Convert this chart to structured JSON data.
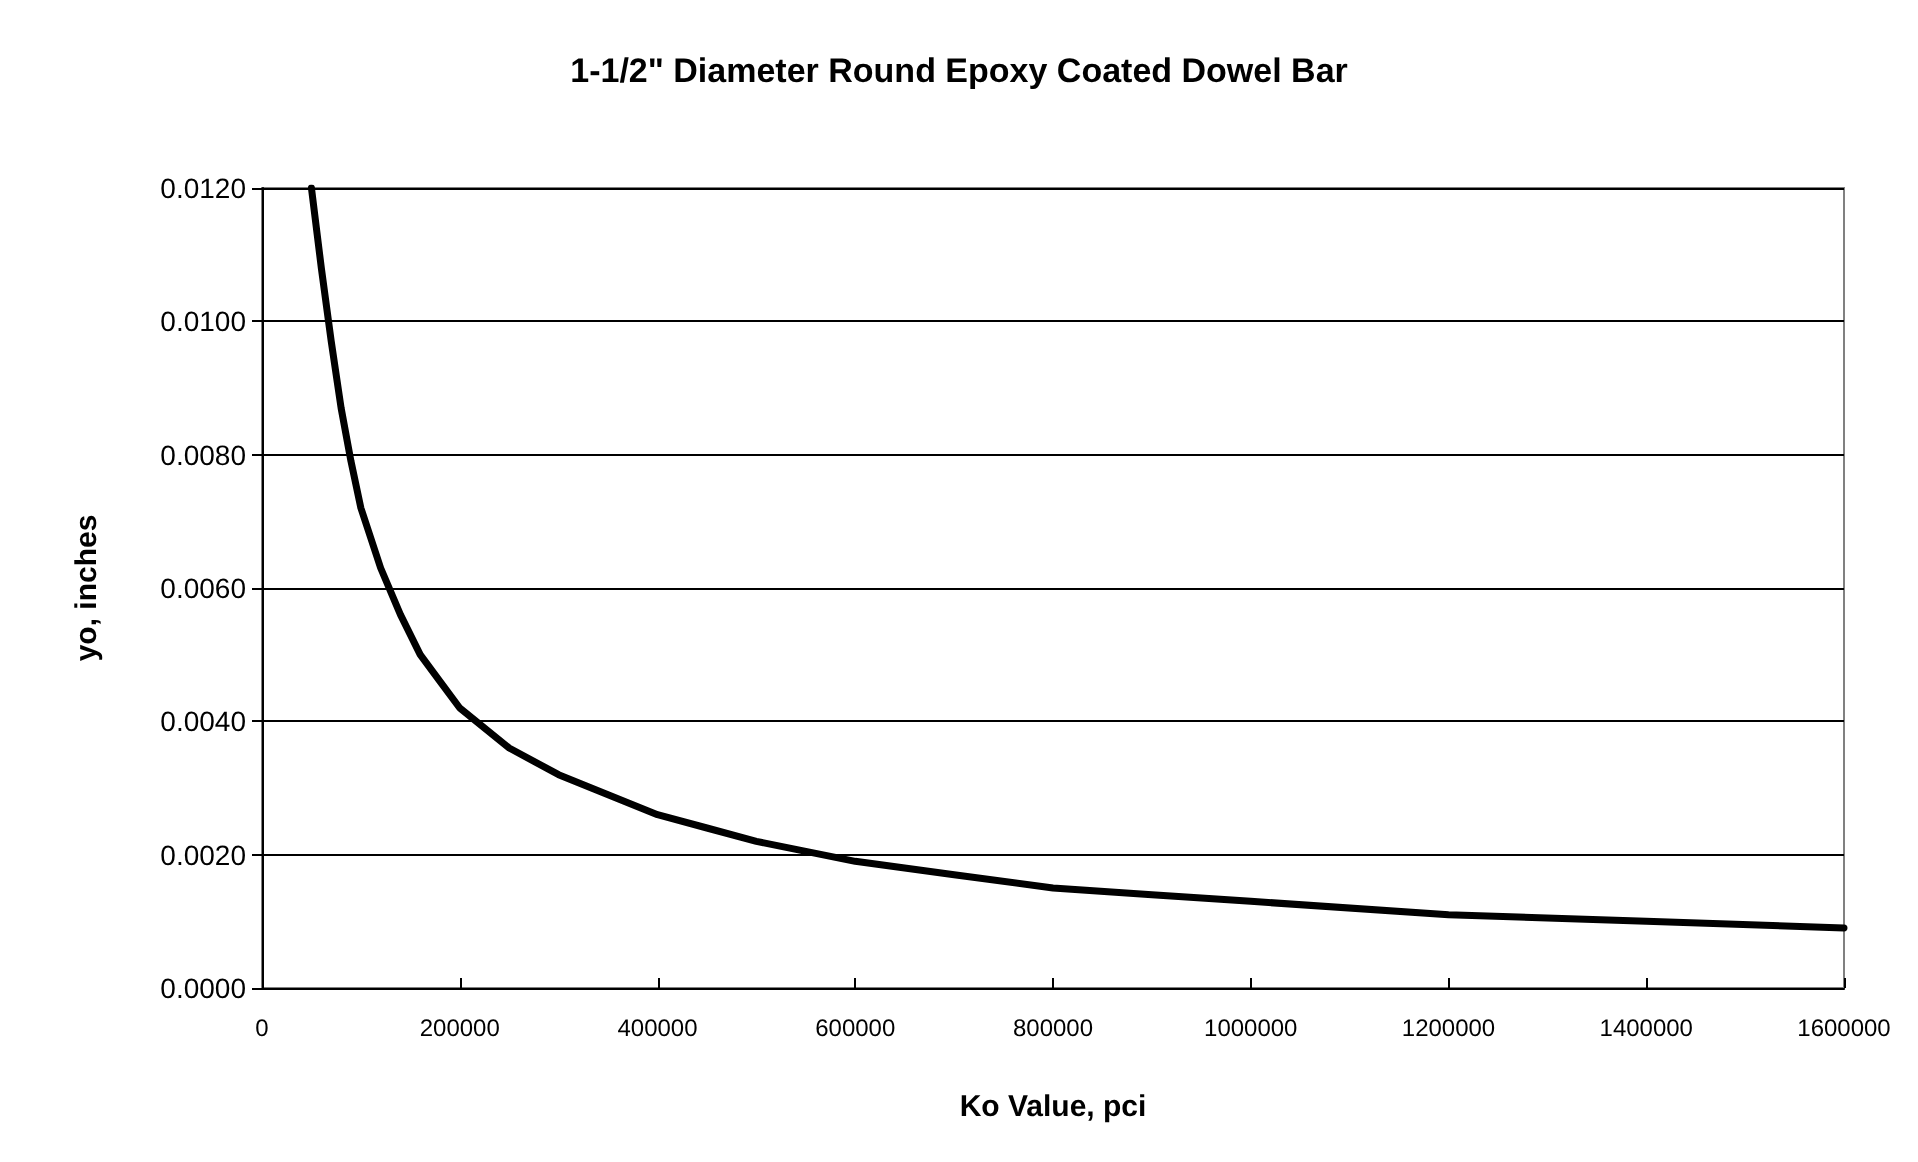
{
  "chart_data": {
    "type": "line",
    "title": "1-1/2\" Diameter Round Epoxy Coated Dowel Bar",
    "xlabel": "Ko Value, pci",
    "ylabel": "yo, inches",
    "x": [
      50000,
      60000,
      70000,
      80000,
      90000,
      100000,
      120000,
      140000,
      160000,
      180000,
      200000,
      250000,
      300000,
      350000,
      400000,
      450000,
      500000,
      600000,
      700000,
      800000,
      900000,
      1000000,
      1200000,
      1400000,
      1600000
    ],
    "series": [
      {
        "color": "#000000",
        "values": [
          0.012,
          0.0108,
          0.0097,
          0.0087,
          0.0079,
          0.0072,
          0.0063,
          0.0056,
          0.005,
          0.0046,
          0.0042,
          0.0036,
          0.0032,
          0.0029,
          0.0026,
          0.0024,
          0.0022,
          0.0019,
          0.0017,
          0.0015,
          0.0014,
          0.0013,
          0.0011,
          0.001,
          0.0009
        ]
      }
    ],
    "xlim": [
      0,
      1600000
    ],
    "xticks": [
      0,
      200000,
      400000,
      600000,
      800000,
      1000000,
      1200000,
      1400000,
      1600000
    ],
    "ylim": [
      0,
      0.012
    ],
    "yticks": [
      {
        "value": 0,
        "label": "0.0000"
      },
      {
        "value": 0.002,
        "label": "0.0020"
      },
      {
        "value": 0.004,
        "label": "0.0040"
      },
      {
        "value": 0.006,
        "label": "0.0060"
      },
      {
        "value": 0.008,
        "label": "0.0080"
      },
      {
        "value": 0.01,
        "label": "0.0100"
      },
      {
        "value": 0.012,
        "label": "0.0120"
      }
    ],
    "grid": "y",
    "marker": "none",
    "line_style": "solid"
  }
}
